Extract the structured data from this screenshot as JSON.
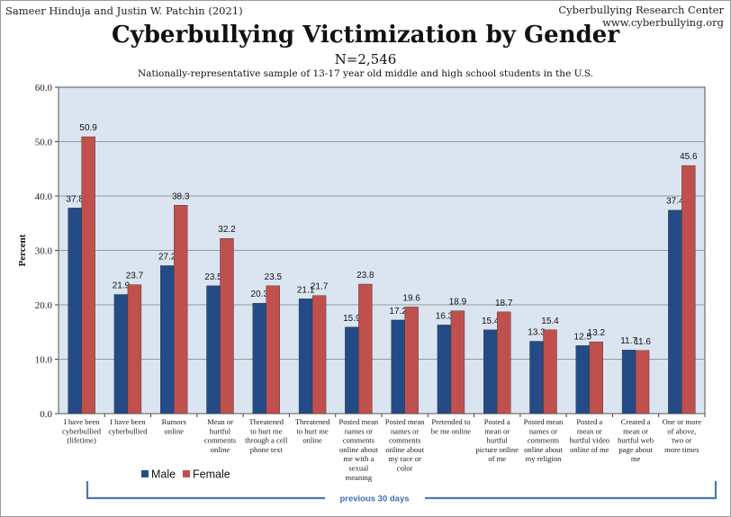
{
  "header": {
    "authors": "Sameer Hinduja and Justin W. Patchin (2021)",
    "org": "Cyberbullying Research Center",
    "url": "www.cyberbullying.org"
  },
  "chart_data": {
    "type": "bar",
    "title": "Cyberbullying Victimization by Gender",
    "n_label": "N=2,546",
    "subtitle": "Nationally-representative sample of 13-17 year old middle and high school students in the U.S.",
    "ylabel": "Percent",
    "xlabel": "",
    "ylim": [
      0,
      60
    ],
    "yticks": [
      "0.0",
      "10.0",
      "20.0",
      "30.0",
      "40.0",
      "50.0",
      "60.0"
    ],
    "grid": true,
    "categories": [
      [
        "I have been",
        "cyberbullied",
        "(lifetime)"
      ],
      [
        "I have been",
        "cyberbullied"
      ],
      [
        "Rumors",
        "online"
      ],
      [
        "Mean or",
        "hurtful",
        "comments",
        "online"
      ],
      [
        "Threatened",
        "to hurt me",
        "through a cell",
        "phone text"
      ],
      [
        "Threatened",
        "to hurt me",
        "online"
      ],
      [
        "Posted mean",
        "names or",
        "comments",
        "online about",
        "me with a",
        "sexual",
        "meaning"
      ],
      [
        "Posted mean",
        "names or",
        "comments",
        "online about",
        "my race or",
        "color"
      ],
      [
        "Pretended to",
        "be me online"
      ],
      [
        "Posted a",
        "mean or",
        "hurtful",
        "picture online",
        "of me"
      ],
      [
        "Posted mean",
        "names or",
        "comments",
        "online about",
        "my religion"
      ],
      [
        "Posted a",
        "mean or",
        "hurtful video",
        "online of me"
      ],
      [
        "Created a",
        "mean or",
        "hurtful web",
        "page about",
        "me"
      ],
      [
        "One or more",
        "of above,",
        "two or",
        "more times"
      ]
    ],
    "series": [
      {
        "name": "Male",
        "color": "#244b86",
        "values": [
          37.8,
          21.9,
          27.2,
          23.5,
          20.3,
          21.1,
          15.9,
          17.2,
          16.3,
          15.4,
          13.3,
          12.5,
          11.7,
          37.4
        ],
        "labels": [
          "37.8",
          "21.9",
          "27.2",
          "23.5",
          "20.3",
          "21.1",
          "15.9",
          "17.2",
          "16.3",
          "15.4",
          "13.3",
          "12.5",
          "11.7",
          "37.4"
        ]
      },
      {
        "name": "Female",
        "color": "#c0504d",
        "values": [
          50.9,
          23.7,
          38.3,
          32.2,
          23.5,
          21.7,
          23.8,
          19.6,
          18.9,
          18.7,
          15.4,
          13.2,
          11.6,
          45.6
        ],
        "labels": [
          "50.9",
          "23.7",
          "38.3",
          "32.2",
          "23.5",
          "21.7",
          "23.8",
          "19.6",
          "18.9",
          "18.7",
          "15.4",
          "13.2",
          "11.6",
          "45.6"
        ]
      }
    ],
    "legend": {
      "position": "bottom-left",
      "items": [
        "Male",
        "Female"
      ]
    },
    "bracket_label": "previous 30 days",
    "colors": {
      "plot_bg": "#dbe5f1",
      "grid": "#7f7f7f",
      "bracket": "#4a78b8"
    }
  }
}
